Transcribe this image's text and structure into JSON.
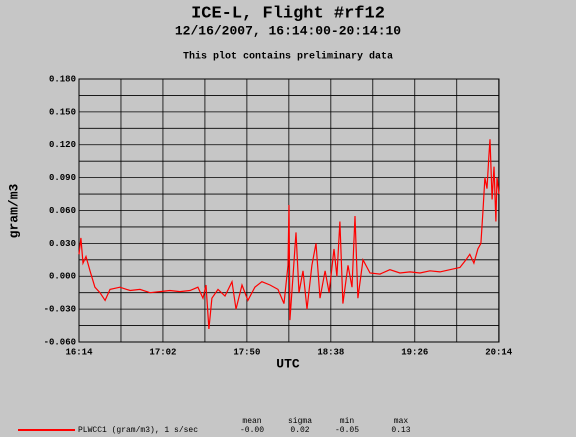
{
  "chart_data": {
    "type": "line",
    "title": "ICE-L, Flight #rf12",
    "subtitle": "12/16/2007, 16:14:00-20:14:10",
    "note": "This plot contains preliminary data",
    "xlabel": "UTC",
    "ylabel": "gram/m3",
    "grid": true,
    "xlim": [
      974,
      1214.17
    ],
    "xticks": [
      {
        "value": 974,
        "label": "16:14"
      },
      {
        "value": 1022,
        "label": "17:02"
      },
      {
        "value": 1070,
        "label": "17:50"
      },
      {
        "value": 1118,
        "label": "18:38"
      },
      {
        "value": 1166,
        "label": "19:26"
      },
      {
        "value": 1214,
        "label": "20:14"
      }
    ],
    "ylim": [
      -0.06,
      0.18
    ],
    "yticks": [
      {
        "value": -0.06,
        "label": "-0.060"
      },
      {
        "value": -0.03,
        "label": "-0.030"
      },
      {
        "value": 0,
        "label": "0.000"
      },
      {
        "value": 0.03,
        "label": "0.030"
      },
      {
        "value": 0.06,
        "label": "0.060"
      },
      {
        "value": 0.09,
        "label": "0.090"
      },
      {
        "value": 0.12,
        "label": "0.120"
      },
      {
        "value": 0.15,
        "label": "0.150"
      },
      {
        "value": 0.18,
        "label": "0.180"
      }
    ],
    "x": [
      974.0,
      975.1,
      976.3,
      978.0,
      980.3,
      983.1,
      986.0,
      988.9,
      991.7,
      997.4,
      1003.2,
      1008.9,
      1014.6,
      1020.3,
      1026.0,
      1031.7,
      1037.5,
      1042.0,
      1044.9,
      1046.6,
      1048.3,
      1050.0,
      1053.5,
      1057.5,
      1061.5,
      1063.8,
      1067.2,
      1070.6,
      1074.6,
      1078.6,
      1083.2,
      1087.8,
      1091.2,
      1093.5,
      1094.1,
      1094.6,
      1096.4,
      1098.1,
      1099.8,
      1102.1,
      1104.4,
      1107.2,
      1109.5,
      1111.8,
      1114.7,
      1117.0,
      1119.8,
      1121.5,
      1123.2,
      1124.9,
      1127.8,
      1130.1,
      1131.8,
      1133.5,
      1136.4,
      1140.4,
      1146.1,
      1151.8,
      1157.5,
      1163.3,
      1169.0,
      1174.7,
      1180.4,
      1186.1,
      1191.8,
      1195.3,
      1197.5,
      1199.8,
      1202.1,
      1203.8,
      1205.0,
      1206.1,
      1207.3,
      1208.4,
      1209.0,
      1210.2,
      1211.3,
      1212.4,
      1213.0,
      1214.2
    ],
    "series": [
      {
        "name": "PLWCC1 (gram/m3), 1 s/sec",
        "color": "#ff0000",
        "values": [
          0.02,
          0.035,
          0.012,
          0.018,
          0.005,
          -0.01,
          -0.015,
          -0.022,
          -0.012,
          -0.01,
          -0.013,
          -0.012,
          -0.015,
          -0.014,
          -0.013,
          -0.014,
          -0.013,
          -0.01,
          -0.02,
          -0.008,
          -0.048,
          -0.02,
          -0.012,
          -0.018,
          -0.005,
          -0.03,
          -0.008,
          -0.022,
          -0.01,
          -0.005,
          -0.008,
          -0.012,
          -0.025,
          0.01,
          0.065,
          -0.04,
          0.0,
          0.04,
          -0.015,
          0.005,
          -0.03,
          0.01,
          0.03,
          -0.02,
          0.005,
          -0.015,
          0.025,
          0.0,
          0.05,
          -0.025,
          0.01,
          -0.01,
          0.055,
          -0.02,
          0.015,
          0.003,
          0.002,
          0.006,
          0.003,
          0.004,
          0.003,
          0.005,
          0.004,
          0.006,
          0.008,
          0.015,
          0.02,
          0.012,
          0.025,
          0.03,
          0.06,
          0.09,
          0.08,
          0.11,
          0.125,
          0.07,
          0.1,
          0.05,
          0.09,
          0.075
        ]
      }
    ],
    "stats": {
      "headers": [
        "mean",
        "sigma",
        "min",
        "max"
      ],
      "values": [
        "-0.00",
        "0.02",
        "-0.05",
        "0.13"
      ]
    }
  }
}
